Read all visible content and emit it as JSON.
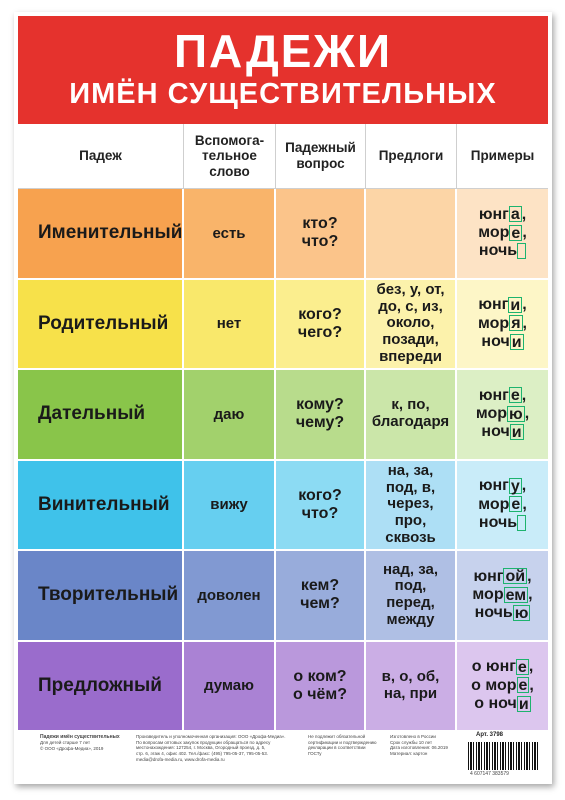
{
  "title": "ПАДЕЖИ",
  "subtitle": "ИМЁН СУЩЕСТВИТЕЛЬНЫХ",
  "colors": {
    "banner": "#e5322d",
    "ending_box": "#1db36e"
  },
  "columns": [
    "Падеж",
    "Вспомога-\nтельное\nслово",
    "Падежный\nвопрос",
    "Предлоги",
    "Примеры"
  ],
  "rows": [
    {
      "case": "Именительный",
      "aux": "есть",
      "question": "кто?\nчто?",
      "prepositions": "",
      "examples": [
        {
          "stem": "юнг",
          "end": "а",
          "tail": ","
        },
        {
          "stem": "мор",
          "end": "е",
          "tail": ","
        },
        {
          "stem": "ночь",
          "end": "",
          "tail": ""
        }
      ]
    },
    {
      "case": "Родительный",
      "aux": "нет",
      "question": "кого?\nчего?",
      "prepositions": "без, у, от,\nдо, с, из,\nоколо,\nпозади,\nвпереди",
      "examples": [
        {
          "stem": "юнг",
          "end": "и",
          "tail": ","
        },
        {
          "stem": "мор",
          "end": "я",
          "tail": ","
        },
        {
          "stem": "ноч",
          "end": "и",
          "tail": ""
        }
      ]
    },
    {
      "case": "Дательный",
      "aux": "даю",
      "question": "кому?\nчему?",
      "prepositions": "к, по,\nблагодаря",
      "examples": [
        {
          "stem": "юнг",
          "end": "е",
          "tail": ","
        },
        {
          "stem": "мор",
          "end": "ю",
          "tail": ","
        },
        {
          "stem": "ноч",
          "end": "и",
          "tail": ""
        }
      ]
    },
    {
      "case": "Винительный",
      "aux": "вижу",
      "question": "кого?\nчто?",
      "prepositions": "на, за,\nпод, в,\nчерез,\nпро,\nсквозь",
      "examples": [
        {
          "stem": "юнг",
          "end": "у",
          "tail": ","
        },
        {
          "stem": "мор",
          "end": "е",
          "tail": ","
        },
        {
          "stem": "ночь",
          "end": "",
          "tail": ""
        }
      ]
    },
    {
      "case": "Творительный",
      "aux": "доволен",
      "question": "кем?\nчем?",
      "prepositions": "над, за,\nпод,\nперед,\nмежду",
      "examples": [
        {
          "stem": "юнг",
          "end": "ой",
          "tail": ","
        },
        {
          "stem": "мор",
          "end": "ем",
          "tail": ","
        },
        {
          "stem": "ночь",
          "end": "ю",
          "tail": ""
        }
      ]
    },
    {
      "case": "Предложный",
      "aux": "думаю",
      "question": "о ком?\nо чём?",
      "prepositions": "в, о, об,\nна, при",
      "examples": [
        {
          "stem": "о юнг",
          "end": "е",
          "tail": ","
        },
        {
          "stem": "о мор",
          "end": "е",
          "tail": ","
        },
        {
          "stem": "о ноч",
          "end": "и",
          "tail": ""
        }
      ]
    }
  ],
  "row_colors": [
    [
      "#f7a24f",
      "#f9b46a",
      "#fbc48a",
      "#fcd5a6",
      "#fde3c5"
    ],
    [
      "#f7e14a",
      "#f9e86b",
      "#fbee8e",
      "#fcf2ab",
      "#fdf6c7"
    ],
    [
      "#89c54a",
      "#a2d16c",
      "#b8dc8c",
      "#cbe6a9",
      "#dcefc5"
    ],
    [
      "#3fc2ea",
      "#66cff0",
      "#8cdbf3",
      "#addff5",
      "#c9ecf9"
    ],
    [
      "#6a86c8",
      "#8199d2",
      "#98acdb",
      "#afbfe4",
      "#c7d2ed"
    ],
    [
      "#9a6ccc",
      "#aa82d4",
      "#ba98dc",
      "#cbaee5",
      "#dcc6ee"
    ]
  ],
  "footer": {
    "product": "Падежи имён существительных",
    "age": "Для детей старше 7 лет",
    "copyright": "© ООО «Дрофа-Медиа», 2019",
    "producer": "Произведитель и уполномоченная организация: ООО «Дрофа-Медиа».",
    "contacts": "По вопросам оптовых закупок продукции обращаться по адресу",
    "address": "местонахождения: 127254, г. Москва, Огородный проезд, д. 5,",
    "address2": "стр. 6, этаж 4, офис 402. Тел./факс: (495) 795-05-37, 795-05-53.",
    "web": "media@drofa-media.ru, www.drofa-media.ru",
    "cert1": "Не подлежит обязательной",
    "cert2": "сертификации и подтверждению",
    "cert3": "декларации в соответствии",
    "cert4": "ГОСТу",
    "made1": "Изготовлено в России",
    "made2": "Срок службы 10 лет",
    "made3": "Дата изготовления: 06.2019",
    "made4": "Материал: картон",
    "art": "Арт. 3798",
    "barcode_number": "4 607147 383579"
  }
}
